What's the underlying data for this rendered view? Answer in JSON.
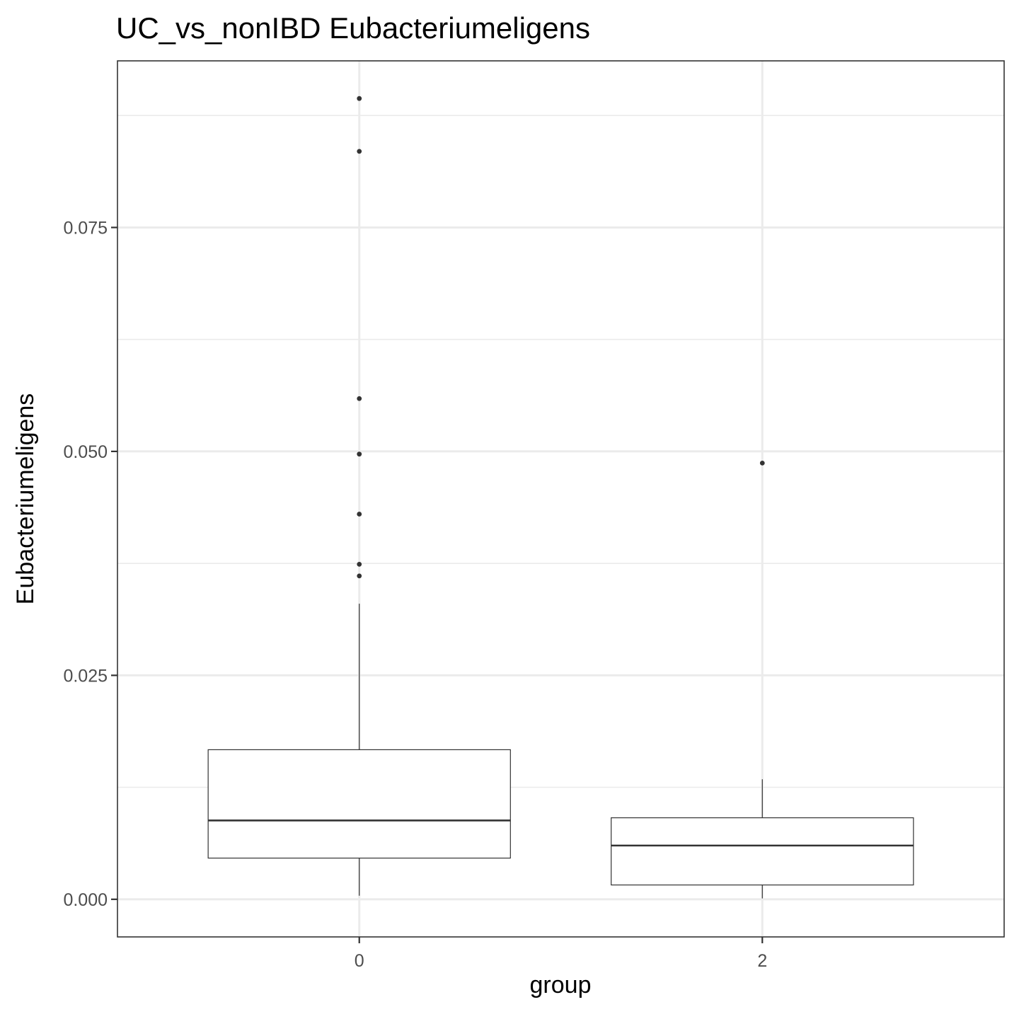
{
  "chart_data": {
    "type": "box",
    "title": "UC_vs_nonIBD Eubacteriumeligens",
    "xlabel": "group",
    "ylabel": "Eubacteriumeligens",
    "categories": [
      "0",
      "2"
    ],
    "yticks": [
      "0.000",
      "0.025",
      "0.050",
      "0.075"
    ],
    "ytick_values": [
      0,
      0.025,
      0.05,
      0.075
    ],
    "ylim": [
      -0.0042,
      0.0936
    ],
    "grid": true,
    "boxes": [
      {
        "group": "0",
        "whisker_low": 0.0004,
        "q1": 0.0046,
        "median": 0.0088,
        "q3": 0.0167,
        "whisker_high": 0.033,
        "outliers": [
          0.0894,
          0.0835,
          0.0559,
          0.0497,
          0.043,
          0.0374,
          0.0361
        ]
      },
      {
        "group": "2",
        "whisker_low": 0.0001,
        "q1": 0.0016,
        "median": 0.006,
        "q3": 0.0091,
        "whisker_high": 0.0134,
        "outliers": [
          0.0487
        ]
      }
    ]
  }
}
